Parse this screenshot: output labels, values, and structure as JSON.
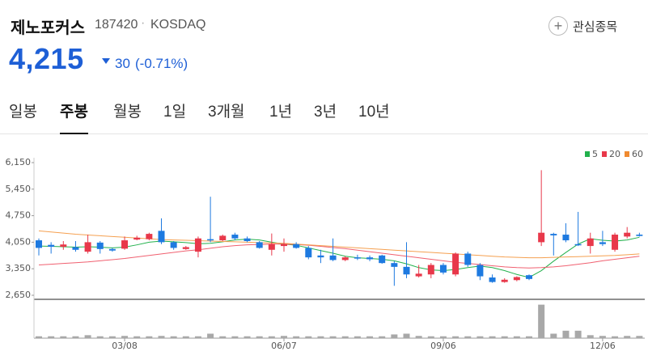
{
  "header": {
    "name": "제노포커스",
    "code": "187420",
    "market": "KOSDAQ",
    "watch": "관심종목",
    "price": "4,215",
    "change": "30",
    "change_pct": "(-0.71%)"
  },
  "tabs": {
    "items": [
      "일봉",
      "주봉",
      "월봉",
      "1일",
      "3개월",
      "1년",
      "3년",
      "10년"
    ],
    "active": 1
  },
  "chart_data": {
    "type": "candlestick",
    "up_color": "#e8384a",
    "down_color": "#1e7ae0",
    "categories": [
      null,
      null,
      null,
      null,
      null,
      null,
      null,
      "03/08",
      null,
      null,
      null,
      null,
      null,
      null,
      null,
      null,
      null,
      null,
      null,
      null,
      "06/07",
      null,
      null,
      null,
      null,
      null,
      null,
      null,
      null,
      null,
      null,
      null,
      null,
      "09/06",
      null,
      null,
      null,
      null,
      null,
      null,
      null,
      null,
      null,
      null,
      null,
      null,
      "12/06",
      null,
      null,
      null
    ],
    "open": [
      4100,
      3980,
      3930,
      3920,
      3800,
      4040,
      3870,
      3880,
      4120,
      4130,
      4350,
      4050,
      3870,
      3800,
      4130,
      4100,
      4250,
      4150,
      4050,
      3850,
      3950,
      4000,
      3900,
      3700,
      3700,
      3580,
      3650,
      3650,
      3700,
      3500,
      3400,
      3150,
      3200,
      3450,
      3200,
      3750,
      3450,
      3120,
      3000,
      3050,
      3180,
      4050,
      4270,
      4250,
      4000,
      3950,
      4050,
      3850,
      4200,
      4250
    ],
    "high": [
      4150,
      4050,
      4080,
      4080,
      4250,
      4080,
      3900,
      4200,
      4220,
      4300,
      4680,
      4080,
      3950,
      4200,
      5250,
      4250,
      4300,
      4200,
      4080,
      4280,
      4150,
      4050,
      3950,
      3850,
      4150,
      3680,
      3720,
      3700,
      3720,
      3550,
      4050,
      3450,
      3500,
      3500,
      3780,
      3800,
      3500,
      3200,
      3100,
      3150,
      3200,
      5950,
      4300,
      4550,
      4850,
      4300,
      4350,
      4300,
      4450,
      4300
    ],
    "low": [
      3700,
      3750,
      3850,
      3800,
      3750,
      3750,
      3800,
      3850,
      4100,
      4100,
      4000,
      3850,
      3850,
      3650,
      4050,
      4080,
      4100,
      4050,
      3880,
      3700,
      3800,
      3880,
      3600,
      3500,
      3550,
      3550,
      3580,
      3550,
      3480,
      2900,
      3100,
      3120,
      3100,
      3200,
      3150,
      3400,
      3050,
      2980,
      2980,
      3020,
      3050,
      3950,
      3700,
      4050,
      3950,
      3750,
      3950,
      3800,
      4150,
      4200
    ],
    "close": [
      3900,
      3930,
      3990,
      3850,
      4050,
      3870,
      3830,
      4100,
      4170,
      4270,
      4050,
      3900,
      3920,
      4150,
      4100,
      4220,
      4150,
      4080,
      3900,
      4000,
      4000,
      3900,
      3650,
      3650,
      3580,
      3650,
      3620,
      3600,
      3500,
      3400,
      3200,
      3220,
      3450,
      3250,
      3750,
      3450,
      3150,
      3000,
      3060,
      3130,
      3080,
      4300,
      4230,
      4100,
      3970,
      4150,
      4000,
      4250,
      4300,
      4215
    ],
    "series": [
      {
        "name": "5",
        "color": "#22b14c",
        "values": [
          3950,
          3940,
          3930,
          3920,
          3930,
          3920,
          3900,
          3920,
          3980,
          4050,
          4080,
          4060,
          4040,
          4010,
          4020,
          4060,
          4110,
          4130,
          4110,
          4050,
          4000,
          3970,
          3900,
          3830,
          3760,
          3680,
          3640,
          3620,
          3600,
          3560,
          3480,
          3380,
          3320,
          3300,
          3330,
          3380,
          3420,
          3380,
          3300,
          3200,
          3120,
          3300,
          3550,
          3780,
          4000,
          4140,
          4100,
          4080,
          4110,
          4180
        ]
      },
      {
        "name": "20",
        "color": "#f06070",
        "values": [
          3450,
          3470,
          3490,
          3510,
          3530,
          3560,
          3590,
          3620,
          3660,
          3700,
          3740,
          3780,
          3820,
          3850,
          3890,
          3930,
          3960,
          3980,
          3990,
          4000,
          4000,
          3990,
          3970,
          3940,
          3910,
          3880,
          3840,
          3800,
          3760,
          3720,
          3680,
          3640,
          3600,
          3560,
          3520,
          3490,
          3460,
          3430,
          3400,
          3380,
          3370,
          3380,
          3400,
          3430,
          3470,
          3510,
          3560,
          3600,
          3640,
          3680
        ]
      },
      {
        "name": "60",
        "color": "#f5a050",
        "values": [
          4350,
          4320,
          4290,
          4260,
          4240,
          4220,
          4200,
          4180,
          4160,
          4140,
          4120,
          4110,
          4100,
          4090,
          4080,
          4070,
          4060,
          4050,
          4040,
          4030,
          4020,
          4000,
          3980,
          3960,
          3940,
          3920,
          3900,
          3880,
          3860,
          3840,
          3820,
          3800,
          3780,
          3760,
          3740,
          3720,
          3700,
          3680,
          3660,
          3650,
          3640,
          3640,
          3650,
          3660,
          3670,
          3680,
          3690,
          3700,
          3720,
          3740
        ]
      }
    ],
    "legend_colors": [
      "#22b14c",
      "#e8384a",
      "#f08a30"
    ],
    "volume": [
      5,
      5,
      5,
      5,
      8,
      5,
      5,
      6,
      5,
      5,
      6,
      5,
      5,
      5,
      12,
      5,
      5,
      5,
      5,
      5,
      6,
      5,
      5,
      5,
      5,
      5,
      5,
      5,
      5,
      10,
      12,
      6,
      5,
      5,
      5,
      5,
      5,
      5,
      5,
      5,
      5,
      90,
      12,
      20,
      20,
      8,
      6,
      5,
      6,
      6
    ],
    "volume_color": "#a8a8a8",
    "volume_ylim": [
      0,
      100
    ],
    "ylim": [
      2650,
      6150
    ],
    "yticks": [
      {
        "value": 6150,
        "label": "6,150"
      },
      {
        "value": 5450,
        "label": "5,450"
      },
      {
        "value": 4750,
        "label": "4,750"
      },
      {
        "value": 4050,
        "label": "4,050"
      },
      {
        "value": 3350,
        "label": "3,350"
      },
      {
        "value": 2650,
        "label": "2,650"
      }
    ],
    "grid": false
  }
}
